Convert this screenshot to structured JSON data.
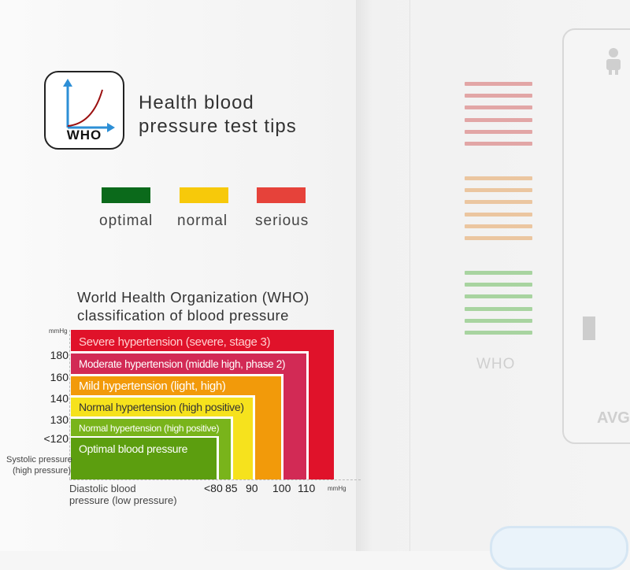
{
  "header": {
    "icon_text": "WHO",
    "title_line1": "Health blood",
    "title_line2": "pressure test tips"
  },
  "legend": [
    {
      "label": "optimal",
      "color": "#0b6a1b"
    },
    {
      "label": "normal",
      "color": "#f7c90a"
    },
    {
      "label": "serious",
      "color": "#e6423a"
    }
  ],
  "chart": {
    "title_line1": "World Health Organization (WHO)",
    "title_line2": "classification of blood pressure",
    "y_unit": "mmHg",
    "x_unit": "mmHg",
    "y_axis_label_line1": "Systolic pressure",
    "y_axis_label_line2": "(high pressure)",
    "x_axis_label_line1": "Diastolic blood",
    "x_axis_label_line2": "pressure (low pressure)",
    "y_ticks": [
      "180",
      "160",
      "140",
      "130",
      "<120"
    ],
    "x_ticks": [
      "<80",
      "85",
      "90",
      "100",
      "110"
    ],
    "bands": [
      {
        "label": "Severe hypertension (severe, stage 3)",
        "color": "#e0122a"
      },
      {
        "label": "Moderate hypertension (middle high, phase 2)",
        "color": "#d22a55"
      },
      {
        "label": "Mild hypertension (light, high)",
        "color": "#f29a0a"
      },
      {
        "label": "Normal hypertension (high positive)",
        "color": "#f6e21d"
      },
      {
        "label": "Normal hypertension (high positive)",
        "color": "#79b41b"
      },
      {
        "label": "Optimal blood pressure",
        "color": "#5c9e0f"
      }
    ]
  },
  "device": {
    "scale_label": "WHO",
    "avg_label": "AVG",
    "scale_colors": [
      "#e2a6a6",
      "#ebc6a0",
      "#a8d4a0"
    ]
  }
}
